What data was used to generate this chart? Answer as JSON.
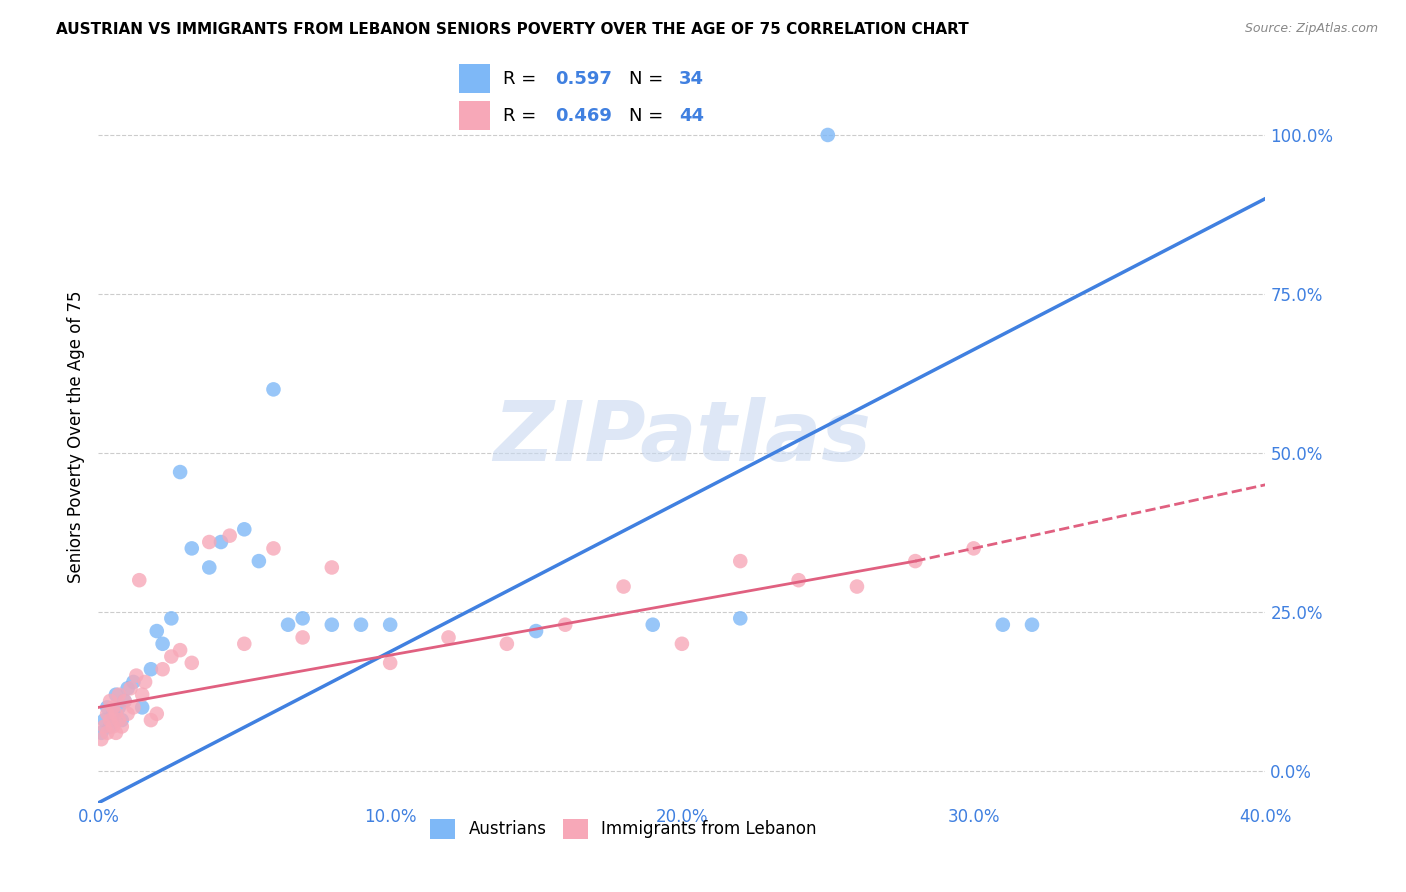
{
  "title": "AUSTRIAN VS IMMIGRANTS FROM LEBANON SENIORS POVERTY OVER THE AGE OF 75 CORRELATION CHART",
  "source": "Source: ZipAtlas.com",
  "ylabel": "Seniors Poverty Over the Age of 75",
  "xlim": [
    0.0,
    0.4
  ],
  "ylim": [
    -0.05,
    1.1
  ],
  "xticks": [
    0.0,
    0.1,
    0.2,
    0.3,
    0.4
  ],
  "yticks": [
    0.0,
    0.25,
    0.5,
    0.75,
    1.0
  ],
  "xticklabels": [
    "0.0%",
    "10.0%",
    "20.0%",
    "30.0%",
    "40.0%"
  ],
  "yticklabels": [
    "0.0%",
    "25.0%",
    "50.0%",
    "75.0%",
    "100.0%"
  ],
  "R_austrians": 0.597,
  "N_austrians": 34,
  "R_lebanon": 0.469,
  "N_lebanon": 44,
  "color_austrians": "#7eb8f7",
  "color_lebanon": "#f7a8b8",
  "color_line_austrians": "#4080e0",
  "color_line_lebanon": "#e06080",
  "color_legend_text": "#4080e0",
  "watermark_text": "ZIPatlas",
  "watermark_color": "#c8d8f0",
  "legend_label_austrians": "Austrians",
  "legend_label_lebanon": "Immigrants from Lebanon",
  "line_austrians_x0": 0.0,
  "line_austrians_y0": -0.05,
  "line_austrians_x1": 0.4,
  "line_austrians_y1": 0.9,
  "line_lebanon_solid_x0": 0.0,
  "line_lebanon_solid_y0": 0.1,
  "line_lebanon_solid_x1": 0.28,
  "line_lebanon_solid_y1": 0.33,
  "line_lebanon_dashed_x0": 0.28,
  "line_lebanon_dashed_y0": 0.33,
  "line_lebanon_dashed_x1": 0.4,
  "line_lebanon_dashed_y1": 0.45,
  "austrians_x": [
    0.001,
    0.002,
    0.003,
    0.004,
    0.005,
    0.006,
    0.007,
    0.008,
    0.009,
    0.01,
    0.012,
    0.015,
    0.018,
    0.02,
    0.022,
    0.025,
    0.028,
    0.032,
    0.038,
    0.042,
    0.05,
    0.055,
    0.06,
    0.065,
    0.07,
    0.08,
    0.09,
    0.1,
    0.15,
    0.19,
    0.22,
    0.25,
    0.31,
    0.32
  ],
  "austrians_y": [
    0.06,
    0.08,
    0.1,
    0.07,
    0.09,
    0.12,
    0.1,
    0.08,
    0.11,
    0.13,
    0.14,
    0.1,
    0.16,
    0.22,
    0.2,
    0.24,
    0.47,
    0.35,
    0.32,
    0.36,
    0.38,
    0.33,
    0.6,
    0.23,
    0.24,
    0.23,
    0.23,
    0.23,
    0.22,
    0.23,
    0.24,
    1.0,
    0.23,
    0.23
  ],
  "lebanon_x": [
    0.001,
    0.002,
    0.003,
    0.003,
    0.004,
    0.004,
    0.005,
    0.005,
    0.006,
    0.006,
    0.007,
    0.007,
    0.008,
    0.009,
    0.01,
    0.011,
    0.012,
    0.013,
    0.014,
    0.015,
    0.016,
    0.018,
    0.02,
    0.022,
    0.025,
    0.028,
    0.032,
    0.038,
    0.045,
    0.05,
    0.06,
    0.07,
    0.08,
    0.1,
    0.12,
    0.14,
    0.16,
    0.18,
    0.2,
    0.22,
    0.24,
    0.26,
    0.28,
    0.3
  ],
  "lebanon_y": [
    0.05,
    0.07,
    0.06,
    0.09,
    0.08,
    0.11,
    0.07,
    0.1,
    0.06,
    0.09,
    0.12,
    0.08,
    0.07,
    0.11,
    0.09,
    0.13,
    0.1,
    0.15,
    0.3,
    0.12,
    0.14,
    0.08,
    0.09,
    0.16,
    0.18,
    0.19,
    0.17,
    0.36,
    0.37,
    0.2,
    0.35,
    0.21,
    0.32,
    0.17,
    0.21,
    0.2,
    0.23,
    0.29,
    0.2,
    0.33,
    0.3,
    0.29,
    0.33,
    0.35
  ]
}
